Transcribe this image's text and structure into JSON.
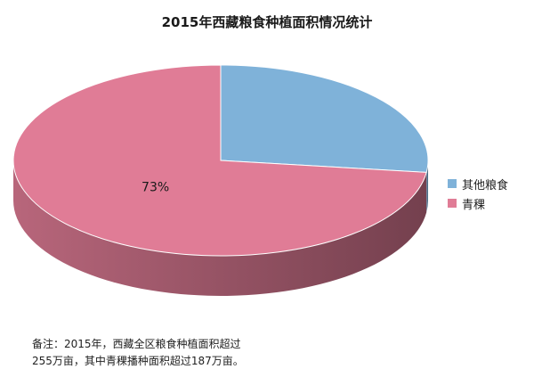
{
  "chart_data": {
    "type": "pie",
    "title": "2015年西藏粮食种植面积情况统计",
    "slices": [
      {
        "label": "其他粮食",
        "value": 27,
        "color": "#7fb2d9"
      },
      {
        "label": "青稞",
        "value": 73,
        "color": "#e07c96",
        "data_label": "73%"
      }
    ],
    "legend_position": "right",
    "three_d": true
  },
  "note": "备注：2015年，西藏全区粮食种植面积超过\n255万亩，其中青稞播种面积超过187万亩。"
}
